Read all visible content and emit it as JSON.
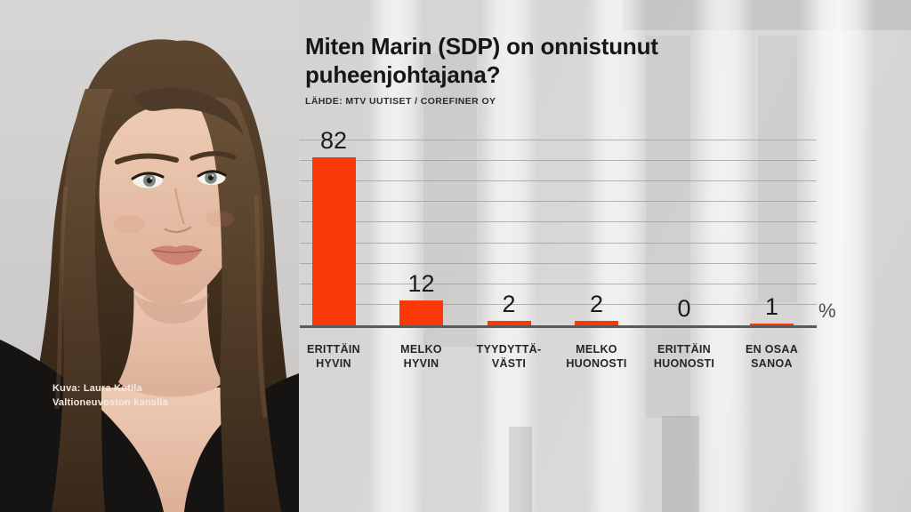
{
  "header": {
    "title_line1": "Miten Marin (SDP) on onnistunut",
    "title_line2": "puheenjohtajana?",
    "source": "LÄHDE: MTV UUTISET / COREFINER OY"
  },
  "photo": {
    "credit_line1": "Kuva: Laura Kotila",
    "credit_line2": "Valtioneuvoston kanslia",
    "alt": "Sanna Marin portrait"
  },
  "chart_data": {
    "type": "bar",
    "title": "Miten Marin (SDP) on onnistunut puheenjohtajana?",
    "source": "LÄHDE: MTV UUTISET / COREFINER OY",
    "categories": [
      "ERITTÄIN HYVIN",
      "MELKO HYVIN",
      "TYYDYTTÄVÄSTI",
      "MELKO HUONOSTI",
      "ERITTÄIN HUONOSTI",
      "EN OSAA SANOA"
    ],
    "category_lines": [
      [
        "ERITTÄIN",
        "HYVIN"
      ],
      [
        "MELKO",
        "HYVIN"
      ],
      [
        "TYYDYTTÄ-",
        "VÄSTI"
      ],
      [
        "MELKO",
        "HUONOSTI"
      ],
      [
        "ERITTÄIN",
        "HUONOSTI"
      ],
      [
        "EN OSAA",
        "SANOA"
      ]
    ],
    "values": [
      82,
      12,
      2,
      2,
      0,
      1
    ],
    "unit": "%",
    "xlabel": "",
    "ylabel": "",
    "ylim": [
      0,
      90
    ],
    "grid_step": 10,
    "grid": true,
    "legend": false
  },
  "colors": {
    "bar": "#f93a07",
    "baseline": "#5a5a5a",
    "gridline": "#9c9c9c",
    "title_text": "#161616",
    "background": "#d6d4d3"
  }
}
